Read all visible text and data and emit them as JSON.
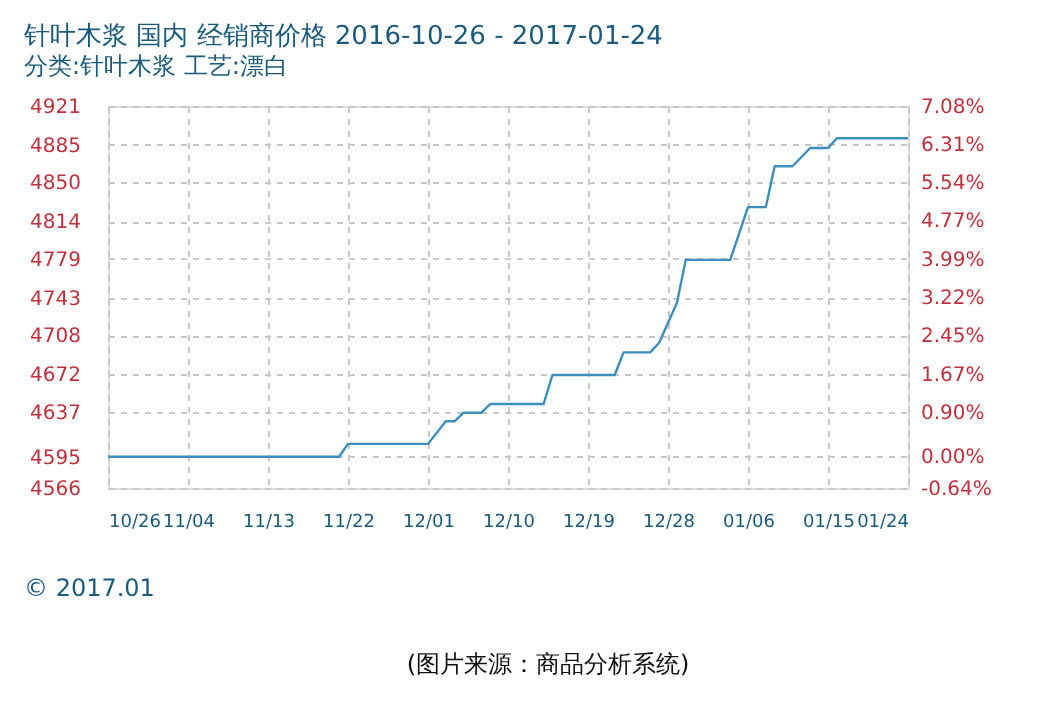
{
  "chart_data": {
    "type": "line",
    "title": "针叶木浆 国内 经销商价格 2016-10-26 - 2017-01-24",
    "subtitle": "分类:针叶木浆 工艺:漂白",
    "x": [
      "2016-10-26",
      "2016-11-21",
      "2016-11-22",
      "2016-12-01",
      "2016-12-03",
      "2016-12-04",
      "2016-12-05",
      "2016-12-07",
      "2016-12-08",
      "2016-12-14",
      "2016-12-15",
      "2016-12-22",
      "2016-12-23",
      "2016-12-26",
      "2016-12-27",
      "2016-12-29",
      "2016-12-30",
      "2017-01-04",
      "2017-01-06",
      "2017-01-08",
      "2017-01-09",
      "2017-01-11",
      "2017-01-13",
      "2017-01-15",
      "2017-01-16",
      "2017-01-24"
    ],
    "series": [
      {
        "color": "#3d8ebd",
        "values": [
          4595,
          4595,
          4607,
          4607,
          4628,
          4628,
          4636,
          4636,
          4644,
          4644,
          4671,
          4671,
          4692,
          4692,
          4701,
          4738,
          4778,
          4778,
          4827,
          4827,
          4865,
          4865,
          4882,
          4882,
          4891,
          4891
        ]
      }
    ],
    "xlim": [
      "2016-10-26",
      "2017-01-24"
    ],
    "xticks": [
      {
        "value": "2016-10-26",
        "label": "10/26"
      },
      {
        "value": "2016-11-04",
        "label": "11/04"
      },
      {
        "value": "2016-11-13",
        "label": "11/13"
      },
      {
        "value": "2016-11-22",
        "label": "11/22"
      },
      {
        "value": "2016-12-01",
        "label": "12/01"
      },
      {
        "value": "2016-12-10",
        "label": "12/10"
      },
      {
        "value": "2016-12-19",
        "label": "12/19"
      },
      {
        "value": "2016-12-28",
        "label": "12/28"
      },
      {
        "value": "2017-01-06",
        "label": "01/06"
      },
      {
        "value": "2017-01-15",
        "label": "01/15"
      },
      {
        "value": "2017-01-24",
        "label": "01/24"
      }
    ],
    "ylim": [
      4566,
      4921
    ],
    "yticks": [
      4566,
      4595,
      4637,
      4672,
      4708,
      4743,
      4779,
      4814,
      4850,
      4885,
      4921
    ],
    "y2lim": [
      -0.64,
      7.08
    ],
    "y2ticks": [
      {
        "value": -0.64,
        "label": "-0.64%"
      },
      {
        "value": 0,
        "label": "0.00%"
      },
      {
        "value": 0.9,
        "label": "0.90%"
      },
      {
        "value": 1.67,
        "label": "1.67%"
      },
      {
        "value": 2.45,
        "label": "2.45%"
      },
      {
        "value": 3.22,
        "label": "3.22%"
      },
      {
        "value": 3.99,
        "label": "3.99%"
      },
      {
        "value": 4.77,
        "label": "4.77%"
      },
      {
        "value": 5.54,
        "label": "5.54%"
      },
      {
        "value": 6.31,
        "label": "6.31%"
      },
      {
        "value": 7.08,
        "label": "7.08%"
      }
    ],
    "grid": true,
    "marker": "none",
    "line_style": "solid",
    "annotations": [
      "© 2017.01",
      "(图片来源：商品分析系统)"
    ]
  }
}
